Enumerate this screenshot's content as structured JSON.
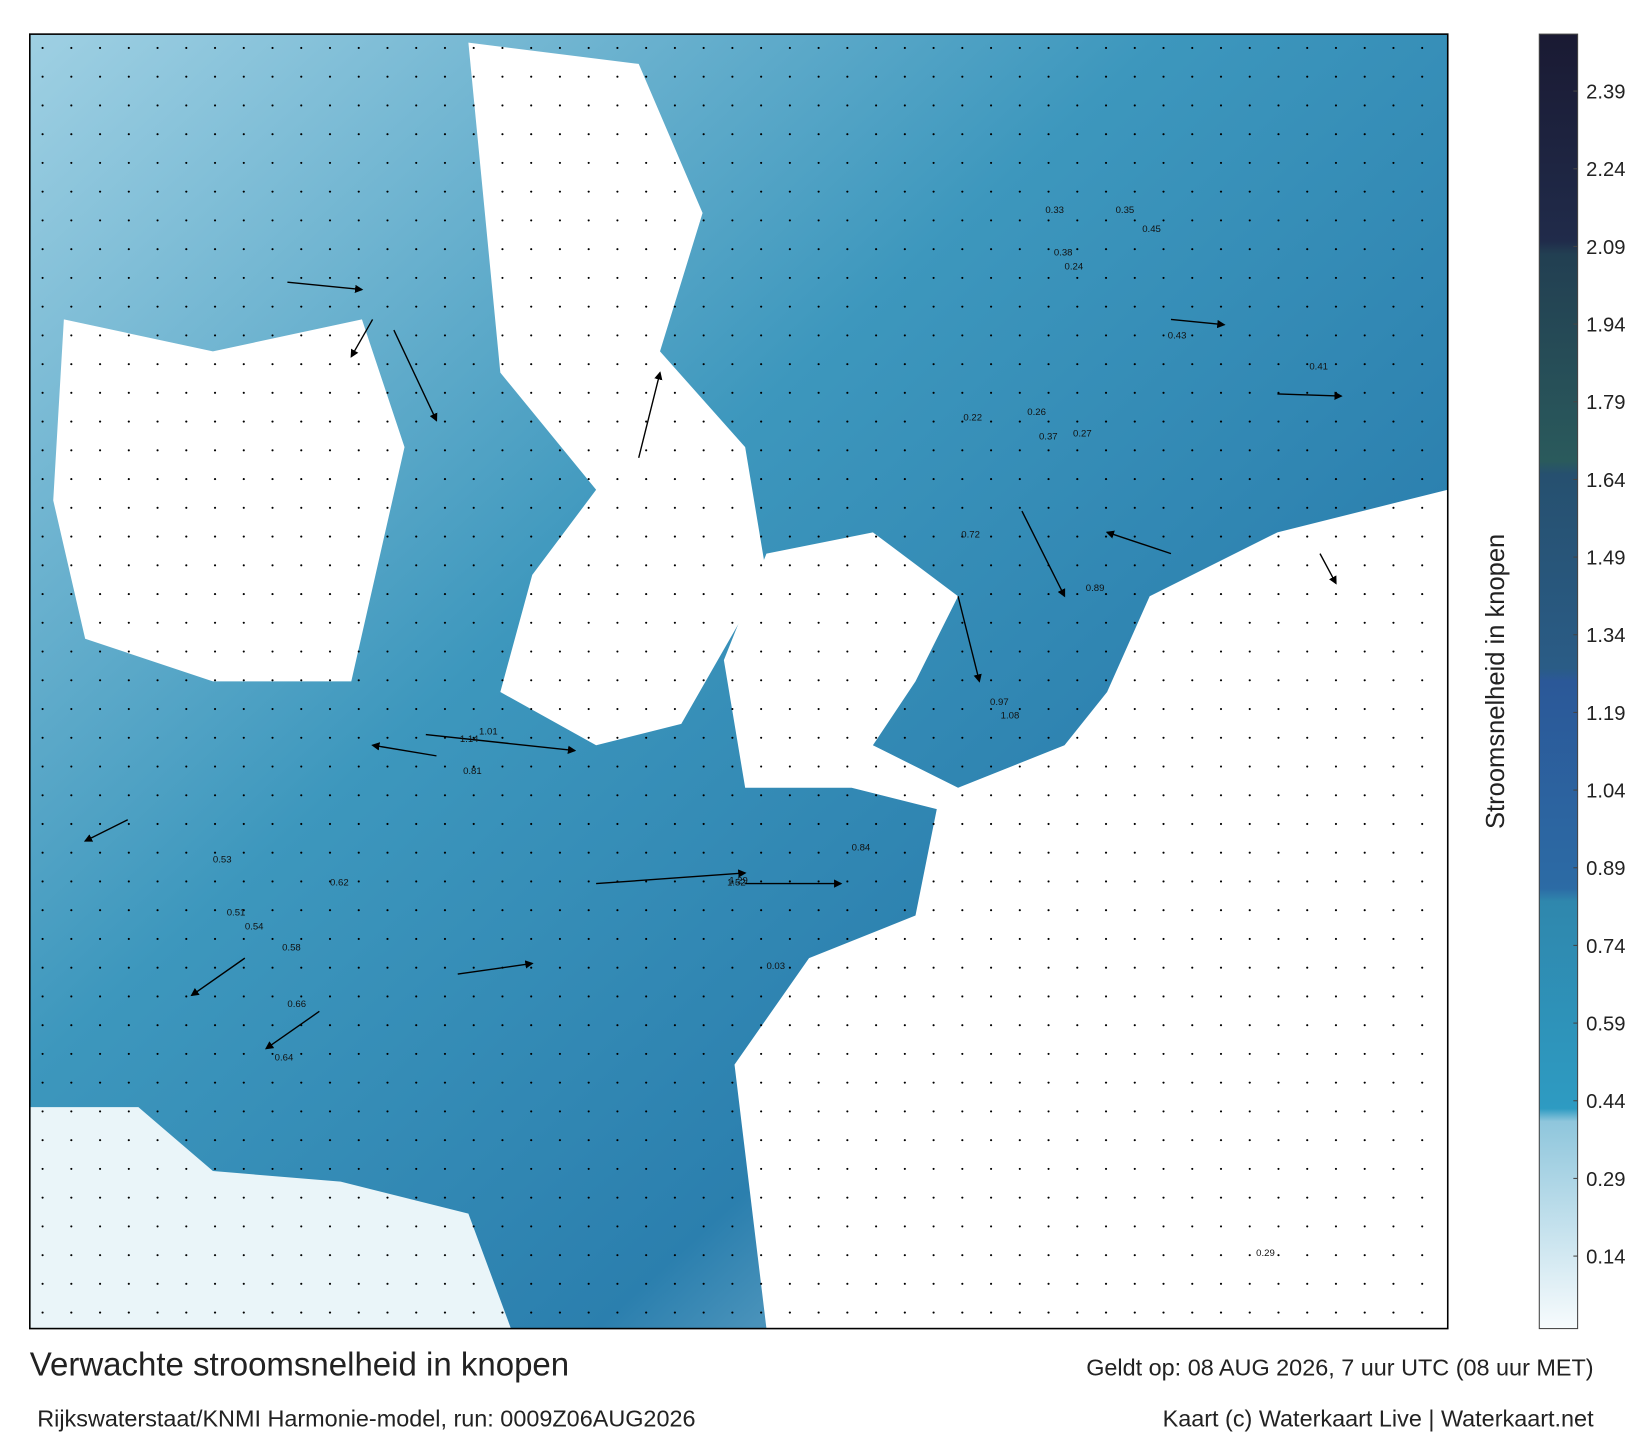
{
  "header": {},
  "map": {
    "value_labels": [
      "0.33",
      "0.35",
      "0.43",
      "0.45",
      "0.38",
      "0.24",
      "0.29",
      "1.14",
      "1.01",
      "0.81",
      "0.58",
      "0.54",
      "0.62",
      "0.64",
      "0.51",
      "1.29",
      "1.52",
      "0.97",
      "1.08",
      "0.72",
      "0.22",
      "0.27",
      "0.37",
      "0.53",
      "0.66",
      "0.26",
      "0.41",
      "0.89",
      "0.84",
      "0.03"
    ]
  },
  "colorbar": {
    "label": "Stroomsnelheid in knopen",
    "range": [
      0,
      2.5
    ],
    "ticks": [
      2.39,
      2.24,
      2.09,
      1.94,
      1.79,
      1.64,
      1.49,
      1.34,
      1.19,
      1.04,
      0.89,
      0.74,
      0.59,
      0.44,
      0.29,
      0.14
    ]
  },
  "footer": {
    "title": "Verwachte stroomsnelheid in knopen",
    "source": "Rijkswaterstaat/KNMI Harmonie-model, run: 0009Z06AUG2026",
    "valid": "Geldt op: 08 AUG 2026, 7 uur UTC (08 uur MET)",
    "credit": "Kaart (c) Waterkaart Live | Waterkaart.net"
  }
}
